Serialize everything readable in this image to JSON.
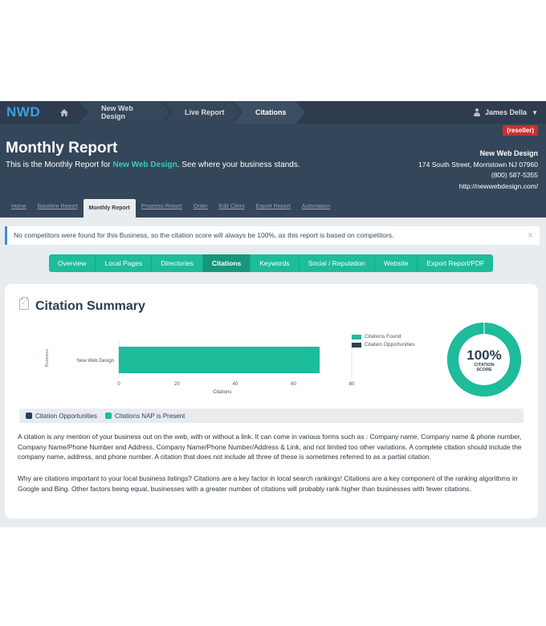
{
  "topbar": {
    "logo": "NWD",
    "crumbs": [
      "New Web Design",
      "Live Report",
      "Citations"
    ],
    "user": "James Della"
  },
  "header": {
    "reseller": "(reseller)",
    "title": "Monthly Report",
    "subtitle_prefix": "This is the Monthly Report for ",
    "subtitle_highlight": "New Web Design",
    "subtitle_suffix": ". See where your business stands.",
    "business": "New Web Design",
    "address": "174 South Street, Morristown NJ 07960",
    "phone": "(800) 587-5355",
    "website": "http://newwebdesign.com/"
  },
  "tabs": [
    "Home",
    "Baseline Report",
    "Monthly Report",
    "Progress Report",
    "Order",
    "Edit Client",
    "Export Report",
    "Automation"
  ],
  "alert": "No competitors were found for this Business, so the citation score will always be 100%, as this report is based on competitors.",
  "nav": [
    "Overview",
    "Local Pages",
    "Directories",
    "Citations",
    "Keywords",
    "Social / Reputation",
    "Website",
    "Export Report/PDF"
  ],
  "card": {
    "title": "Citation Summary",
    "score": {
      "value": "100%",
      "label_line1": "CITATION",
      "label_line2": "SCORE",
      "fraction": 1.0
    },
    "legend_bottom": [
      "Citation Opportunities",
      "Citations NAP is Present"
    ],
    "paragraph1": "A citation is any mention of your business out on the web, with or without a link. It can come in various forms such as : Company name, Company name & phone number, Company Name/Phone Number and Address, Company Name/Phone Number/Address & Link, and not limited too other variations. A complete citation should include the company name, address, and phone number. A citation that does not include all three of these is sometimes referred to as a partial citation.",
    "paragraph2": "Why are citations important to your local business listings? Citations are a key factor in local search rankings! Citations are a key component of the ranking algorithms in Google and Bing. Other factors being equal, businesses with a greater number of citations will probably rank higher than businesses with fewer citations."
  },
  "colors": {
    "accent": "#1dbc9b",
    "dark": "#2e3c4d",
    "header": "#344659",
    "opportunity": "#2a3f54"
  },
  "chart_data": {
    "type": "bar",
    "orientation": "horizontal",
    "categories": [
      "New Web Design"
    ],
    "series": [
      {
        "name": "Citations Found",
        "values": [
          69
        ]
      },
      {
        "name": "Citation Opportunities",
        "values": [
          0
        ]
      }
    ],
    "xlabel": "Citations",
    "ylabel": "Business",
    "xlim": [
      0,
      80
    ],
    "xticks": [
      0,
      20,
      40,
      60,
      80
    ],
    "legend": "right",
    "grid": false
  }
}
